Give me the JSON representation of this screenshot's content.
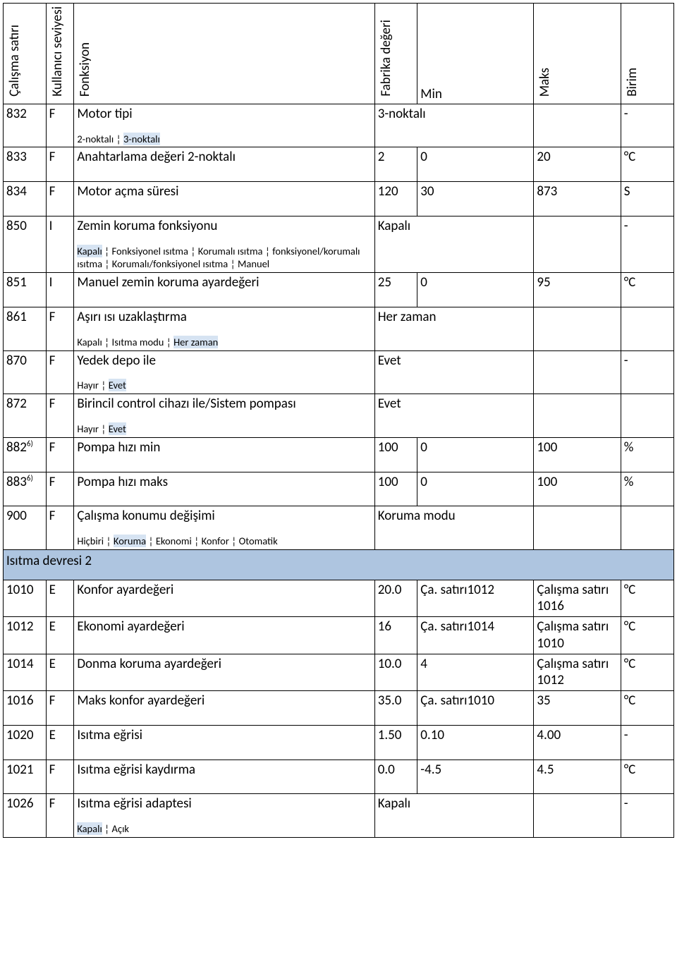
{
  "headers": {
    "line": "Çalışma satırı",
    "level": "Kullanıcı seviyesi",
    "fn": "Fonksiyon",
    "fab": "Fabrika değeri",
    "min": "Min",
    "max": "Maks",
    "unit": "Birim"
  },
  "section": {
    "title": "Isıtma devresi 2"
  },
  "colors": {
    "highlight": "#d6e3f2",
    "section_bg": "#aec5e0",
    "border": "#000000",
    "text": "#000000",
    "bg": "#ffffff"
  },
  "rows": [
    {
      "line": "832",
      "level": "F",
      "fn": "Motor tipi",
      "options": [
        {
          "t": "2-noktalı ¦ "
        },
        {
          "t": "3-noktalı",
          "hl": true
        }
      ],
      "fab": "3-noktalı",
      "fab_span": 2,
      "min": "",
      "max": "",
      "unit": "-"
    },
    {
      "line": "833",
      "level": "F",
      "fn": "Anahtarlama değeri 2-noktalı",
      "fab": "2",
      "min": "0",
      "max": "20",
      "unit": "°C",
      "pad": true
    },
    {
      "line": "834",
      "level": "F",
      "fn": "Motor açma süresi",
      "fab": "120",
      "min": "30",
      "max": "873",
      "unit": "S",
      "pad": true
    },
    {
      "line": "850",
      "level": "I",
      "fn": "Zemin koruma fonksiyonu",
      "options": [
        {
          "t": "Kapalı",
          "hl": true
        },
        {
          "t": " ¦ Fonksiyonel ısıtma ¦ Korumalı ısıtma ¦ fonksiyonel/korumalı ısıtma ¦ Korumalı/fonksiyonel ısıtma ¦ Manuel"
        }
      ],
      "fab": "Kapalı",
      "fab_span": 2,
      "min": "",
      "max": "",
      "unit": "-"
    },
    {
      "line": "851",
      "level": "I",
      "fn": "Manuel zemin koruma ayardeğeri",
      "fab": "25",
      "min": "0",
      "max": "95",
      "unit": "°C",
      "pad": true
    },
    {
      "line": "861",
      "level": "F",
      "fn": "Aşırı ısı uzaklaştırma",
      "options": [
        {
          "t": "Kapalı ¦ Isıtma modu ¦ "
        },
        {
          "t": "Her zaman",
          "hl": true
        }
      ],
      "fab": "Her zaman",
      "fab_span": 2,
      "min": "",
      "max": "",
      "unit": ""
    },
    {
      "line": "870",
      "level": "F",
      "fn": "Yedek depo ile",
      "options": [
        {
          "t": "Hayır ¦ "
        },
        {
          "t": "Evet",
          "hl": true
        }
      ],
      "fab": "Evet",
      "fab_span": 2,
      "min": "",
      "max": "",
      "unit": "-"
    },
    {
      "line": "872",
      "level": "F",
      "fn": "Birincil control cihazı ile/Sistem pompası",
      "options": [
        {
          "t": "Hayır ¦ "
        },
        {
          "t": "Evet",
          "hl": true
        }
      ],
      "fab": "Evet",
      "fab_span": 2,
      "min": "",
      "max": "",
      "unit": ""
    },
    {
      "line": "882",
      "sup": "6)",
      "level": "F",
      "fn": "Pompa hızı min",
      "fab": "100",
      "min": "0",
      "max": "100",
      "unit": "%",
      "pad": true
    },
    {
      "line": "883",
      "sup": "6)",
      "level": "F",
      "fn": "Pompa hızı maks",
      "fab": "100",
      "min": "0",
      "max": "100",
      "unit": "%",
      "pad": true
    },
    {
      "line": "900",
      "level": "F",
      "fn": "Çalışma konumu değişimi",
      "options": [
        {
          "t": "Hiçbiri ¦ "
        },
        {
          "t": "Koruma",
          "hl": true
        },
        {
          "t": " ¦ Ekonomi ¦ Konfor ¦ Otomatik"
        }
      ],
      "fab": "Koruma modu",
      "fab_span": 2,
      "min": "",
      "max": "",
      "unit": ""
    },
    {
      "line": "1010",
      "level": "E",
      "fn": "Konfor ayardeğeri",
      "fab": "20.0",
      "min": "Ça. satırı1012",
      "max": "Çalışma satırı 1016",
      "unit": "°C",
      "pad": true
    },
    {
      "line": "1012",
      "level": "E",
      "fn": "Ekonomi ayardeğeri",
      "fab": "16",
      "min": "Ça. satırı1014",
      "max": "Çalışma satırı 1010",
      "unit": "°C",
      "pad": true
    },
    {
      "line": "1014",
      "level": "E",
      "fn": "Donma koruma ayardeğeri",
      "fab": "10.0",
      "min": "4",
      "max": "Çalışma satırı 1012",
      "unit": "°C",
      "pad": true
    },
    {
      "line": "1016",
      "level": "F",
      "fn": "Maks konfor ayardeğeri",
      "fab": "35.0",
      "min": "Ça. satırı1010",
      "max": "35",
      "unit": "°C",
      "pad": true
    },
    {
      "line": "1020",
      "level": "E",
      "fn": "Isıtma eğrisi",
      "fab": "1.50",
      "min": "0.10",
      "max": "4.00",
      "unit": "-",
      "pad": true
    },
    {
      "line": "1021",
      "level": "F",
      "fn": "Isıtma eğrisi kaydırma",
      "fab": "0.0",
      "min": "-4.5",
      "max": "4.5",
      "unit": "°C",
      "pad": true
    },
    {
      "line": "1026",
      "level": "F",
      "fn": "Isıtma eğrisi adaptesi",
      "options": [
        {
          "t": "Kapalı",
          "hl": true
        },
        {
          "t": " ¦ Açık"
        }
      ],
      "fab": "Kapalı",
      "fab_span": 2,
      "min": "",
      "max": "",
      "unit": "-"
    }
  ]
}
